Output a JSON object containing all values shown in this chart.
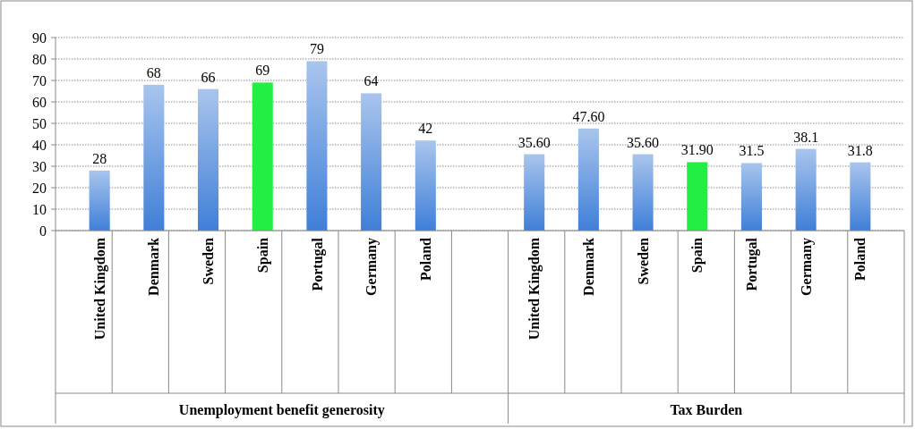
{
  "chart_data": {
    "type": "bar",
    "categories": [
      "United Kingdom",
      "Denmark",
      "Sweden",
      "Spain",
      "Portugal",
      "Germany",
      "Poland",
      null,
      "United Kingdom",
      "Denmark",
      "Sweden",
      "Spain",
      "Portugal",
      "Germany",
      "Poland"
    ],
    "values": [
      28,
      68,
      66,
      69,
      79,
      64,
      42,
      null,
      35.6,
      47.6,
      35.6,
      31.9,
      31.5,
      38.1,
      31.8
    ],
    "value_labels": [
      "28",
      "68",
      "66",
      "69",
      "79",
      "64",
      "42",
      null,
      "35.60",
      "47.60",
      "35.60",
      "31.90",
      "31.5",
      "38.1",
      "31.8"
    ],
    "colors": [
      "#3f7fd8",
      "#3f7fd8",
      "#3f7fd8",
      "#22ee44",
      "#3f7fd8",
      "#3f7fd8",
      "#3f7fd8",
      "#3f7fd8",
      "#3f7fd8",
      "#3f7fd8",
      "#3f7fd8",
      "#22ee44",
      "#3f7fd8",
      "#3f7fd8",
      "#3f7fd8"
    ],
    "ylim": [
      0,
      90
    ],
    "yticks": [
      0,
      10,
      20,
      30,
      40,
      50,
      60,
      70,
      80,
      90
    ],
    "grid": "y",
    "annotations": [
      "Unemployment benefit generosity",
      "Tax Burden"
    ]
  }
}
